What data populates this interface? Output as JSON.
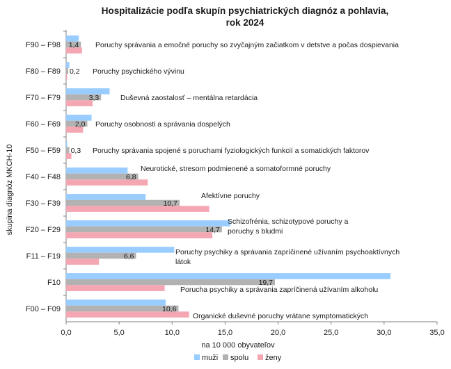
{
  "chart_data": {
    "type": "bar",
    "orientation": "horizontal",
    "title_lines": [
      "Hospitalizácie podľa skupín psychiatrických diagnóz a pohlavia,",
      "rok 2024"
    ],
    "xlabel": "na 10 000 obyvateľov",
    "ylabel": "skupina diagnóz MKCH-10",
    "xlim": [
      0,
      35
    ],
    "xticks": [
      "0,0",
      "5,0",
      "10,0",
      "15,0",
      "20,0",
      "25,0",
      "30,0",
      "35,0"
    ],
    "categories": [
      "F90 – F98",
      "F80 – F89",
      "F70 – F79",
      "F60 – F69",
      "F50 – F59",
      "F40 – F48",
      "F30 – F39",
      "F20 – F29",
      "F11 – F19",
      "F10",
      "F00 – F09"
    ],
    "series": [
      {
        "name": "muži",
        "color": "#99ccff",
        "values": [
          1.2,
          0.3,
          4.1,
          2.4,
          0.1,
          5.8,
          7.5,
          15.5,
          10.2,
          30.6,
          9.4
        ]
      },
      {
        "name": "spolu",
        "color": "#b2b2b2",
        "values": [
          1.4,
          0.2,
          3.3,
          2.0,
          0.3,
          6.8,
          10.7,
          14.7,
          6.6,
          19.7,
          10.6
        ]
      },
      {
        "name": "ženy",
        "color": "#f4a6b3",
        "values": [
          1.5,
          0.1,
          2.5,
          1.6,
          0.5,
          7.7,
          13.5,
          13.8,
          3.1,
          9.3,
          11.6
        ]
      }
    ],
    "data_labels": [
      "1,4",
      "0,2",
      "3,3",
      "2,0",
      "0,3",
      "6,8",
      "10,7",
      "14,7",
      "6,6",
      "19,7",
      "10,6"
    ],
    "annotations": [
      [
        "Poruchy správania a emočné poruchy so zvyčajným začiatkom v detstve a počas dospievania"
      ],
      [
        "Poruchy psychického vývinu"
      ],
      [
        "Duševná zaostalosť – mentálna retardácia"
      ],
      [
        "Poruchy osobnosti a správania dospelých"
      ],
      [
        "Poruchy správania spojené s poruchami fyziologických funkcií a somatických faktorov"
      ],
      [
        "Neurotické, stresom podmienené a somatoformné poruchy"
      ],
      [
        "Afektívne poruchy"
      ],
      [
        "Schizofrénia, schizotypové poruchy a",
        "poruchy s bludmi"
      ],
      [
        "Poruchy psychiky a správania zapríčinené užívaním psychoaktívnych",
        "látok"
      ],
      [
        "Porucha psychiky a správania zapríčinená užívaním alkoholu"
      ],
      [
        "Organické duševné poruchy vrátane symptomatických"
      ]
    ],
    "legend_position": "bottom",
    "grid": false
  }
}
